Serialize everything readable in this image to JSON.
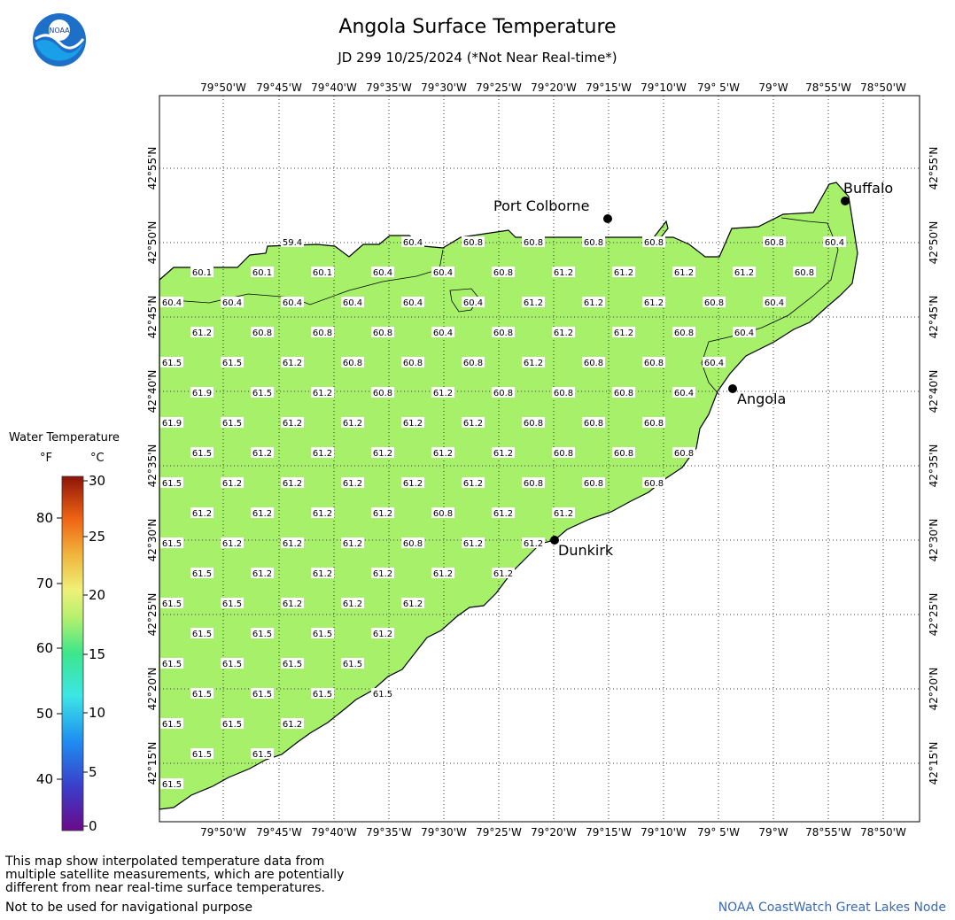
{
  "title": "Angola Surface Temperature",
  "subtitle": "JD 299 10/25/2024 (*Not Near Real-time*)",
  "logo_text": "NOAA",
  "map": {
    "lon_labels": [
      "79°50'W",
      "79°45'W",
      "79°40'W",
      "79°35'W",
      "79°30'W",
      "79°25'W",
      "79°20'W",
      "79°15'W",
      "79°10'W",
      "79° 5'W",
      "79°W",
      "78°55'W",
      "78°50'W"
    ],
    "lat_labels": [
      "42°55'N",
      "42°50'N",
      "42°45'N",
      "42°40'N",
      "42°35'N",
      "42°30'N",
      "42°25'N",
      "42°20'N",
      "42°15'N"
    ],
    "water_color": "#a6f06a",
    "cities": [
      {
        "name": "Buffalo"
      },
      {
        "name": "Port Colborne"
      },
      {
        "name": "Angola"
      },
      {
        "name": "Dunkirk"
      }
    ],
    "temperature_rows": [
      [
        "59.4",
        "60.4",
        "60.8",
        "60.8",
        "60.8",
        "60.8",
        "60.8",
        "60.4"
      ],
      [
        "60.1",
        "60.1",
        "60.1",
        "60.4",
        "60.4",
        "60.8",
        "61.2",
        "61.2",
        "61.2",
        "61.2",
        "60.8"
      ],
      [
        "60.4",
        "60.4",
        "60.4",
        "60.4",
        "60.4",
        "60.4",
        "61.2",
        "61.2",
        "61.2",
        "60.8",
        "60.4"
      ],
      [
        "61.2",
        "60.8",
        "60.8",
        "60.8",
        "60.4",
        "60.8",
        "61.2",
        "61.2",
        "60.8",
        "60.4"
      ],
      [
        "61.5",
        "61.5",
        "61.2",
        "60.8",
        "60.8",
        "60.8",
        "61.2",
        "60.8",
        "60.8",
        "60.4"
      ],
      [
        "61.9",
        "61.5",
        "61.2",
        "60.8",
        "61.2",
        "60.8",
        "60.8",
        "60.8",
        "60.4"
      ],
      [
        "61.9",
        "61.5",
        "61.2",
        "61.2",
        "61.2",
        "61.2",
        "60.8",
        "60.8",
        "60.8"
      ],
      [
        "61.5",
        "61.2",
        "61.2",
        "61.2",
        "61.2",
        "61.2",
        "60.8",
        "60.8",
        "60.8"
      ],
      [
        "61.5",
        "61.2",
        "61.2",
        "61.2",
        "61.2",
        "61.2",
        "60.8",
        "60.8",
        "60.8"
      ],
      [
        "61.2",
        "61.2",
        "61.2",
        "61.2",
        "60.8",
        "61.2",
        "61.2"
      ],
      [
        "61.5",
        "61.2",
        "61.2",
        "61.2",
        "60.8",
        "61.2",
        "61.2"
      ],
      [
        "61.5",
        "61.2",
        "61.2",
        "61.2",
        "61.2",
        "61.2"
      ],
      [
        "61.5",
        "61.5",
        "61.2",
        "61.2",
        "61.2"
      ],
      [
        "61.5",
        "61.5",
        "61.5",
        "61.2"
      ],
      [
        "61.5",
        "61.5",
        "61.5",
        "61.5"
      ],
      [
        "61.5",
        "61.5",
        "61.5",
        "61.5"
      ],
      [
        "61.5",
        "61.5",
        "61.2"
      ],
      [
        "61.5",
        "61.5"
      ],
      [
        "61.5"
      ]
    ]
  },
  "legend": {
    "title": "Water Temperature",
    "unit_f": "°F",
    "unit_c": "°C",
    "f_ticks": [
      "80",
      "70",
      "60",
      "50",
      "40"
    ],
    "c_ticks": [
      "30",
      "25",
      "20",
      "15",
      "10",
      "5",
      "0"
    ]
  },
  "footnote": {
    "line1": "This map show interpolated temperature data from",
    "line2": "multiple satellite measurements, which are potentially",
    "line3": "different from near real-time surface temperatures.",
    "nav": "Not to be used for navigational purpose",
    "credit": "NOAA CoastWatch Great Lakes Node"
  }
}
